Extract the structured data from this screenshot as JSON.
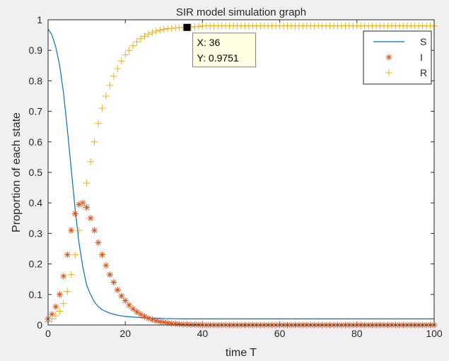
{
  "chart_data": {
    "type": "scatter",
    "title": "SIR model simulation graph",
    "xlabel": "time T",
    "ylabel": "Proportion of each state",
    "xlim": [
      0,
      100
    ],
    "ylim": [
      0,
      1
    ],
    "grid": false,
    "legend_position": "top-right",
    "x_ticks": [
      "0",
      "20",
      "40",
      "60",
      "80",
      "100"
    ],
    "y_ticks": [
      "0",
      "0.1",
      "0.2",
      "0.3",
      "0.4",
      "0.5",
      "0.6",
      "0.7",
      "0.8",
      "0.9",
      "1"
    ],
    "series": [
      {
        "name": "S",
        "style": "line",
        "color": "#0072BD",
        "x": [
          0,
          1,
          2,
          3,
          4,
          5,
          6,
          7,
          8,
          9,
          10,
          11,
          12,
          13,
          14,
          15,
          16,
          17,
          18,
          19,
          20,
          22,
          24,
          26,
          28,
          30,
          35,
          40,
          50,
          60,
          70,
          80,
          90,
          100
        ],
        "y": [
          0.97,
          0.95,
          0.91,
          0.85,
          0.76,
          0.64,
          0.51,
          0.38,
          0.27,
          0.19,
          0.13,
          0.1,
          0.075,
          0.06,
          0.05,
          0.044,
          0.039,
          0.035,
          0.032,
          0.03,
          0.028,
          0.026,
          0.024,
          0.023,
          0.022,
          0.021,
          0.02,
          0.02,
          0.02,
          0.02,
          0.02,
          0.02,
          0.02,
          0.02
        ]
      },
      {
        "name": "I",
        "style": "asterisk",
        "color": "#D95319",
        "x": [
          0,
          1,
          2,
          3,
          4,
          5,
          6,
          7,
          8,
          9,
          10,
          11,
          12,
          13,
          14,
          15,
          16,
          17,
          18,
          19,
          20,
          21,
          22,
          23,
          24,
          25,
          26,
          27,
          28,
          29,
          30,
          31,
          32,
          33,
          34,
          35,
          36,
          37,
          38,
          39,
          40
        ],
        "y": [
          0.02,
          0.035,
          0.06,
          0.1,
          0.16,
          0.23,
          0.31,
          0.365,
          0.395,
          0.4,
          0.385,
          0.35,
          0.31,
          0.27,
          0.23,
          0.195,
          0.165,
          0.14,
          0.115,
          0.095,
          0.08,
          0.065,
          0.053,
          0.043,
          0.035,
          0.028,
          0.022,
          0.018,
          0.014,
          0.011,
          0.009,
          0.007,
          0.005,
          0.004,
          0.003,
          0.002,
          0.002,
          0.001,
          0.001,
          0.001,
          0.0
        ]
      },
      {
        "name": "R",
        "style": "plus",
        "color": "#EDB120",
        "x": [
          0,
          1,
          2,
          3,
          4,
          5,
          6,
          7,
          8,
          9,
          10,
          11,
          12,
          13,
          14,
          15,
          16,
          17,
          18,
          19,
          20,
          21,
          22,
          23,
          24,
          25,
          26,
          27,
          28,
          29,
          30,
          31,
          32,
          33,
          34,
          35,
          36,
          37,
          38,
          39,
          40
        ],
        "y": [
          0.01,
          0.02,
          0.03,
          0.045,
          0.07,
          0.11,
          0.165,
          0.23,
          0.31,
          0.39,
          0.465,
          0.535,
          0.6,
          0.66,
          0.71,
          0.75,
          0.785,
          0.815,
          0.84,
          0.865,
          0.885,
          0.9,
          0.915,
          0.928,
          0.938,
          0.946,
          0.953,
          0.958,
          0.963,
          0.966,
          0.969,
          0.971,
          0.972,
          0.973,
          0.974,
          0.9745,
          0.9751,
          0.976,
          0.977,
          0.978,
          0.98
        ]
      }
    ],
    "datatip": {
      "x_text": "X: 36",
      "y_text": "Y: 0.9751",
      "x": 36,
      "y": 0.9751
    }
  }
}
